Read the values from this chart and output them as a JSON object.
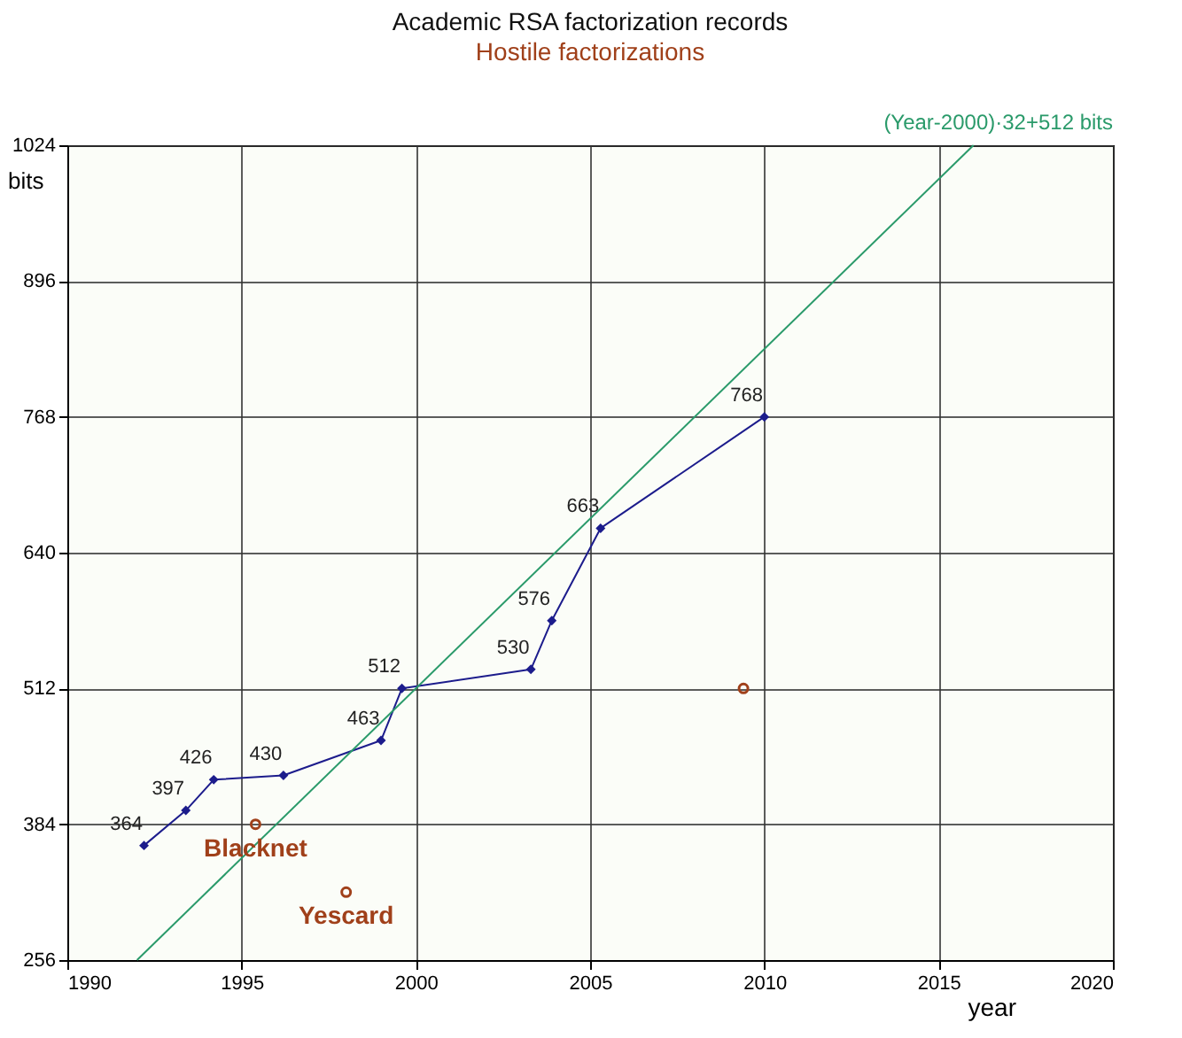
{
  "chart_data": {
    "type": "line",
    "title": "Academic RSA factorization records",
    "xlabel": "year",
    "ylabel": "bits",
    "xlim": [
      1990,
      2020
    ],
    "xticks": [
      1990,
      1995,
      2000,
      2005,
      2010,
      2015,
      2020
    ],
    "ylim": [
      256,
      1024
    ],
    "yticks": [
      256,
      384,
      512,
      640,
      768,
      896,
      1024
    ],
    "grid": true,
    "series": [
      {
        "marker": "diamond",
        "color": "#1c1c8c",
        "x": [
          1992.2,
          1993.4,
          1994.2,
          1996.2,
          1999.0,
          1999.6,
          2003.3,
          2003.9,
          2005.3,
          2010.0
        ],
        "values": [
          364,
          397,
          426,
          430,
          463,
          512,
          530,
          576,
          663,
          768
        ],
        "value_labels": [
          "364",
          "397",
          "426",
          "430",
          "463",
          "512",
          "530",
          "576",
          "663",
          "768"
        ]
      },
      {
        "type": "scatter",
        "marker": "circle",
        "name": "Hostile factorizations",
        "color": "#a0401a",
        "x": [
          1995.4,
          1998.0,
          2009.4
        ],
        "values": [
          384,
          320,
          512
        ]
      },
      {
        "type": "line",
        "marker": "none",
        "name": "(Year-2000)·32+512 bits",
        "color": "#2a9a6a",
        "x": [
          1992,
          2016
        ],
        "values": [
          256,
          1024
        ]
      }
    ],
    "annotations": [
      {
        "text": "Blacknet",
        "x": 1995.4,
        "y": 384
      },
      {
        "text": "Yescard",
        "x": 1998.0,
        "y": 320
      }
    ]
  }
}
